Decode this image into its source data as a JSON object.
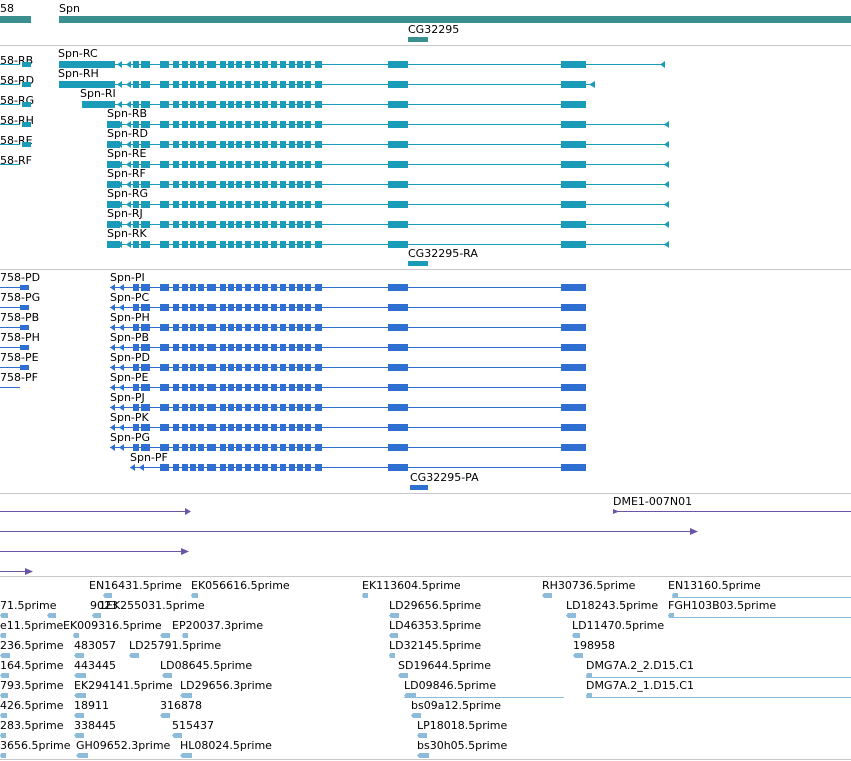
{
  "colors": {
    "gene": "#3a8f8f",
    "mrna": "#1a9cb8",
    "protein": "#2f6fd1",
    "est_long": "#6a55a8",
    "est_short": "#8cbcd9",
    "separator": "#c8c8c8"
  },
  "gene_track": {
    "left_partial_label": "58",
    "main_gene_label": "Spn",
    "small_gene_label": "CG32295"
  },
  "mrna_track": {
    "left_labels": [
      "58-RB",
      "58-RD",
      "58-RG",
      "58-RH",
      "58-RE",
      "58-RF"
    ],
    "transcripts": [
      "Spn-RC",
      "Spn-RH",
      "Spn-RI",
      "Spn-RB",
      "Spn-RD",
      "Spn-RE",
      "Spn-RF",
      "Spn-RG",
      "Spn-RJ",
      "Spn-RK"
    ],
    "small_label": "CG32295-RA"
  },
  "protein_track": {
    "left_labels": [
      "758-PD",
      "758-PG",
      "758-PB",
      "758-PH",
      "758-PE",
      "758-PF"
    ],
    "proteins": [
      "Spn-PI",
      "Spn-PC",
      "Spn-PH",
      "Spn-PB",
      "Spn-PD",
      "Spn-PE",
      "Spn-PJ",
      "Spn-PK",
      "Spn-PG",
      "Spn-PF"
    ],
    "small_label": "CG32295-PA"
  },
  "est_long_track": {
    "label": "DME1-007N01"
  },
  "est_track": {
    "labels": [
      "EN16431.5prime",
      "EK056616.5prime",
      "EK113604.5prime",
      "RH30736.5prime",
      "EN13160.5prime",
      "71.5prime",
      "9023",
      "1EK255031.5prime",
      "LD29656.5prime",
      "LD18243.5prime",
      "FGH103B03.5prime",
      "e11.5prime",
      "EK009316.5prime",
      "EP20037.3prime",
      "LD46353.5prime",
      "LD11470.5prime",
      "236.5prime",
      "483057",
      "LD25791.5prime",
      "LD32145.5prime",
      "198958",
      "164.5prime",
      "443445",
      "LD08645.5prime",
      "SD19644.5prime",
      "DMG7A.2_2.D15.C1",
      "793.5prime",
      "EK294141.5prime",
      "LD29656.3prime",
      "LD09846.5prime",
      "DMG7A.2_1.D15.C1",
      "426.5prime",
      "18911",
      "316878",
      "bs09a12.5prime",
      "283.5prime",
      "338445",
      "515437",
      "LP18018.5prime",
      "3656.5prime",
      "GH09652.3prime",
      "HL08024.5prime",
      "bs30h05.5prime"
    ]
  }
}
